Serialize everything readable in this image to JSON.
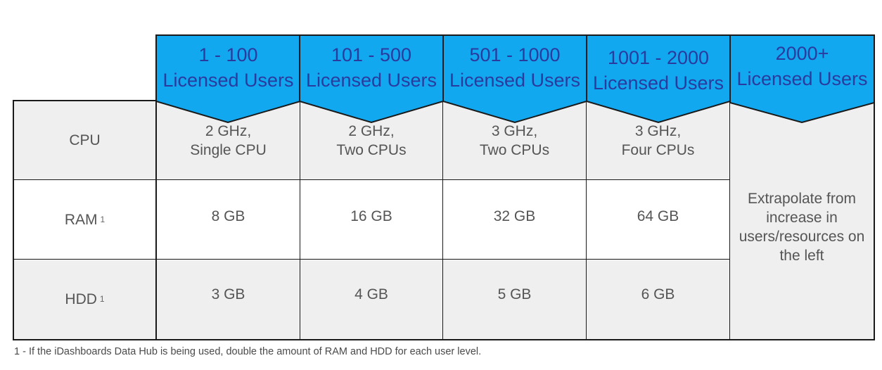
{
  "headers": [
    {
      "range": "1 - 100",
      "label": "Licensed Users"
    },
    {
      "range": "101 - 500",
      "label": "Licensed Users"
    },
    {
      "range": "501 - 1000",
      "label": "Licensed Users"
    },
    {
      "range": "1001 - 2000",
      "label": "Licensed Users"
    },
    {
      "range": "2000+",
      "label": "Licensed Users"
    }
  ],
  "rows": [
    {
      "label": "CPU",
      "footnote_mark": "",
      "cells": [
        {
          "line1": "2 GHz,",
          "line2": "Single CPU"
        },
        {
          "line1": "2 GHz,",
          "line2": "Two CPUs"
        },
        {
          "line1": "3 GHz,",
          "line2": "Two CPUs"
        },
        {
          "line1": "3 GHz,",
          "line2": "Four CPUs"
        }
      ]
    },
    {
      "label": "RAM",
      "footnote_mark": "1",
      "cells": [
        {
          "line1": "8 GB",
          "line2": ""
        },
        {
          "line1": "16 GB",
          "line2": ""
        },
        {
          "line1": "32 GB",
          "line2": ""
        },
        {
          "line1": "64 GB",
          "line2": ""
        }
      ]
    },
    {
      "label": "HDD",
      "footnote_mark": "1",
      "cells": [
        {
          "line1": "3 GB",
          "line2": ""
        },
        {
          "line1": "4 GB",
          "line2": ""
        },
        {
          "line1": "5 GB",
          "line2": ""
        },
        {
          "line1": "6 GB",
          "line2": ""
        }
      ]
    }
  ],
  "merged_cell": {
    "lines": [
      "Extrapolate from",
      "increase in",
      "users/resources on",
      "the left"
    ]
  },
  "footnote": "1 - If the iDashboards Data Hub is being used, double the amount of RAM and HDD for each user level.",
  "colors": {
    "header_fill": "#12a8f0",
    "header_text": "#2a3b9e",
    "gray_cell": "#efefef"
  }
}
